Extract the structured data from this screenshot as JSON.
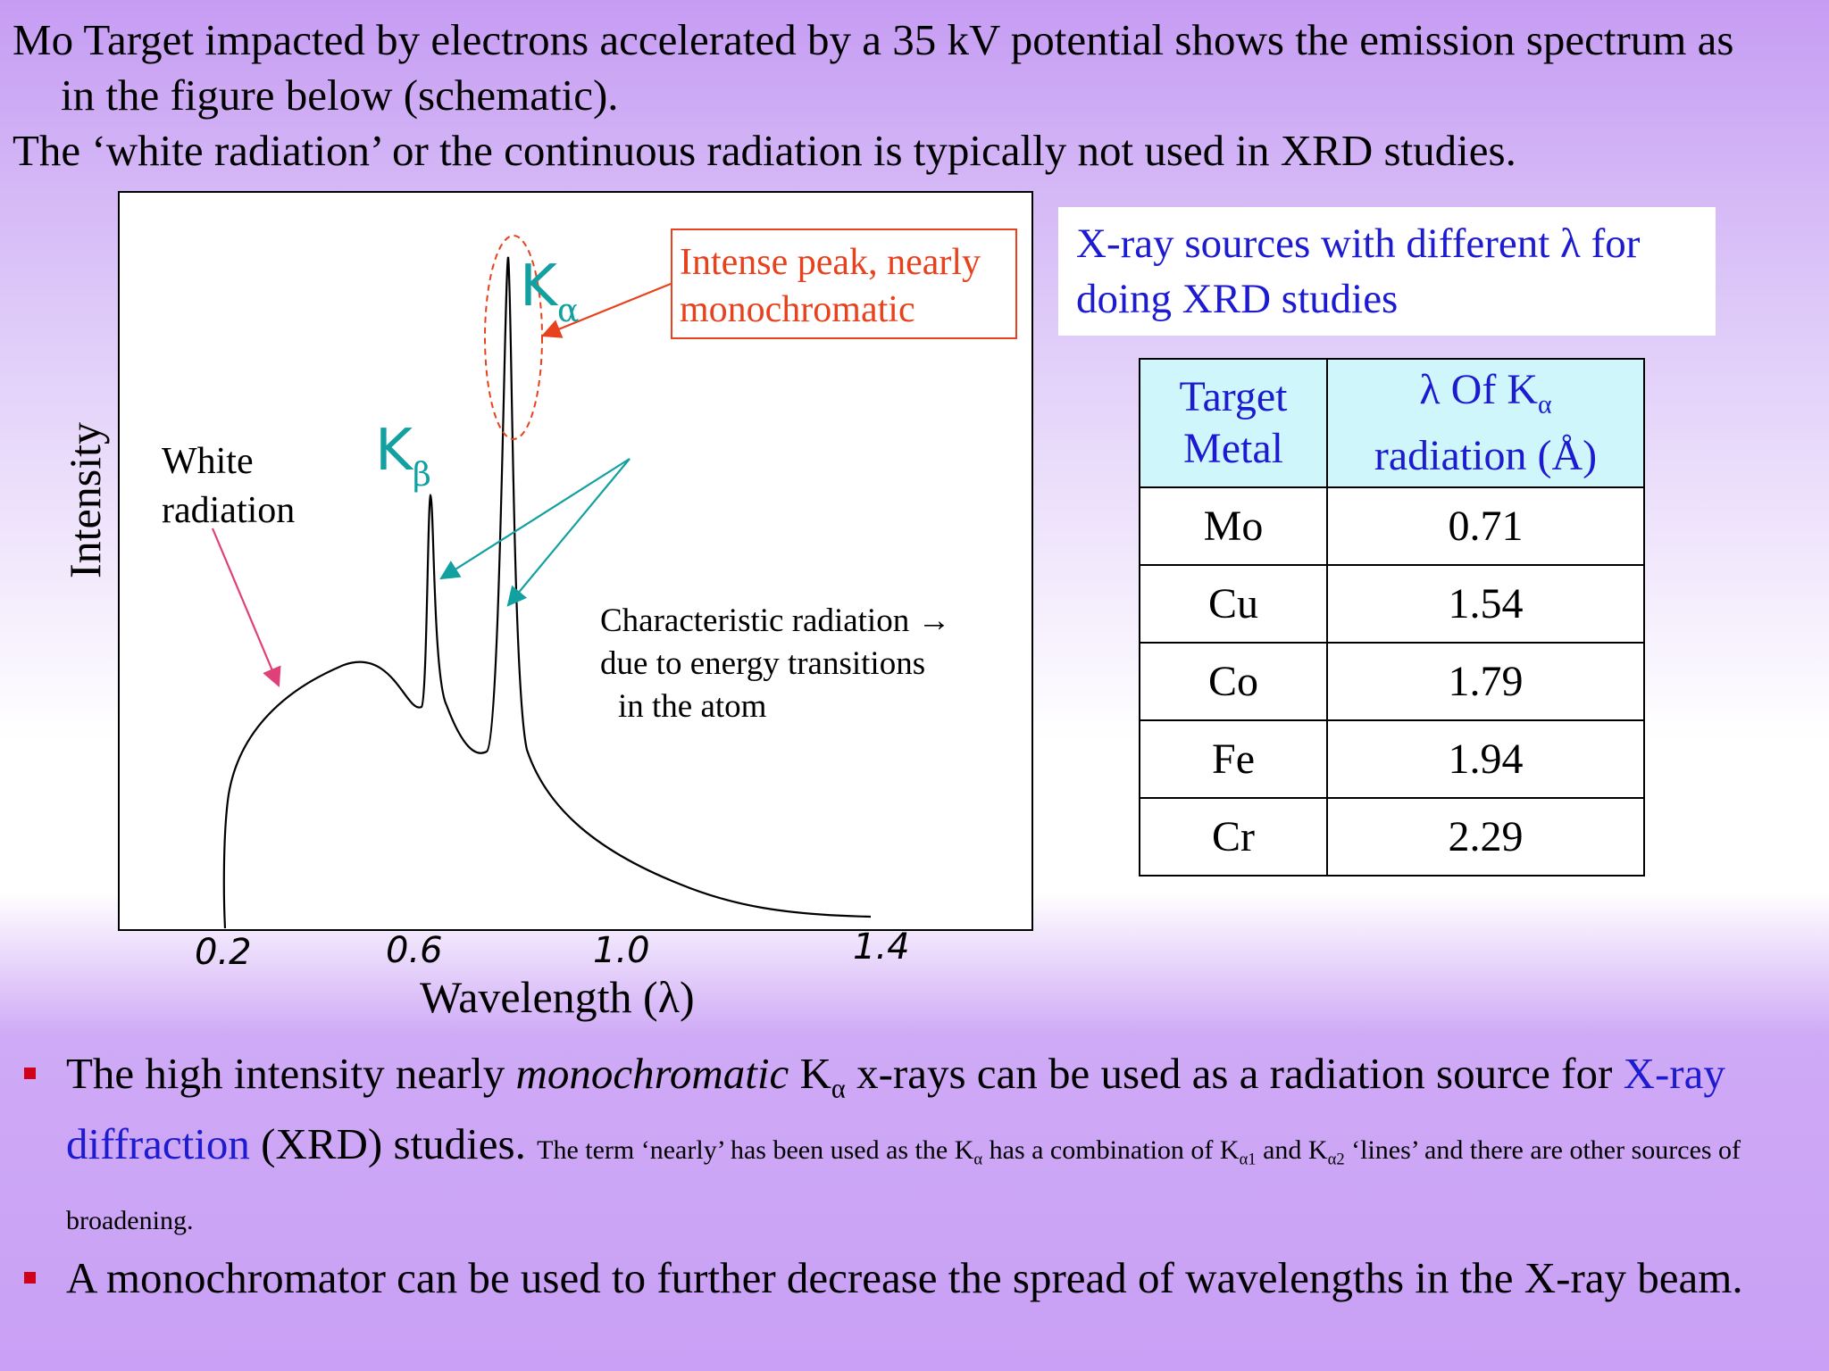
{
  "intro": {
    "line1": "Mo Target impacted by electrons accelerated by a 35 kV potential shows the emission spectrum as",
    "line2": "in the figure below (schematic).",
    "line3": "The ‘white radiation’ or the continuous radiation is typically not used in XRD studies."
  },
  "figure": {
    "y_axis_label": "Intensity",
    "x_axis_label": "Wavelength (λ)",
    "ticks": [
      "0.2",
      "0.6",
      "1.0",
      "1.4"
    ],
    "white_label_1": "White",
    "white_label_2": "radiation",
    "kalpha_main": "K",
    "kalpha_sub": "α",
    "kbeta_main": "K",
    "kbeta_sub": "β",
    "peak_note_1": "Intense peak, nearly",
    "peak_note_2": "monochromatic",
    "char_1": "Characteristic radiation →",
    "char_2": "due to energy transitions",
    "char_3": "in the atom",
    "colors": {
      "k_labels": "#12a0a0",
      "annotation": "#e8411d",
      "white_arrow": "#e0407a"
    }
  },
  "sources": {
    "line1": "X-ray sources with different λ for",
    "line2": "doing XRD studies"
  },
  "table": {
    "header_col1_line1": "Target",
    "header_col1_line2": "Metal",
    "header_col2_line1a": "λ Of K",
    "header_col2_sub": "α",
    "header_col2_line2": "radiation (Å)",
    "rows": [
      {
        "metal": "Mo",
        "lambda": "0.71"
      },
      {
        "metal": "Cu",
        "lambda": "1.54"
      },
      {
        "metal": "Co",
        "lambda": "1.79"
      },
      {
        "metal": "Fe",
        "lambda": "1.94"
      },
      {
        "metal": "Cr",
        "lambda": "2.29"
      }
    ]
  },
  "bullets": {
    "b1_a": "The high intensity nearly ",
    "b1_italic": "monochromatic",
    "b1_b": " K",
    "b1_sub": "α",
    "b1_c": " x-rays can be used as a radiation source for ",
    "b1_link": "X-ray diffraction",
    "b1_d": " (XRD) studies. ",
    "b1_small_a": "The term ‘nearly’ has been used as the K",
    "b1_small_sub1": "α",
    "b1_small_b": " has a combination of K",
    "b1_small_sub2": "α1",
    "b1_small_c": " and K",
    "b1_small_sub3": "α2",
    "b1_small_d": " ‘lines’ and there are other sources of broadening.",
    "b2": "A monochromator can be used to further decrease the spread of wavelengths in the X-ray beam."
  }
}
